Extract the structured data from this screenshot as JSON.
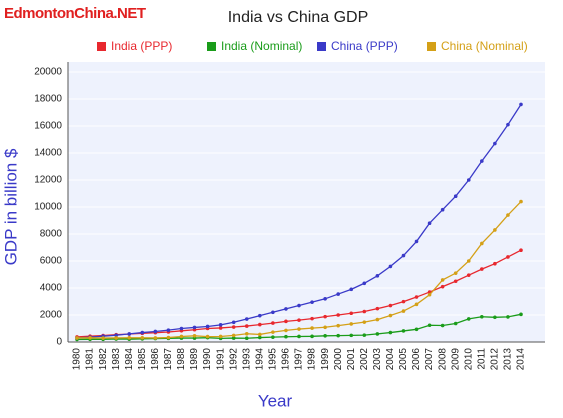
{
  "watermark": "EdmontonChina.NET",
  "chart_data": {
    "type": "line",
    "title": "India vs China GDP",
    "x_label": "Year",
    "y_label": "GDP in billion $",
    "categories": [
      "1980",
      "1981",
      "1982",
      "1983",
      "1984",
      "1985",
      "1986",
      "1987",
      "1988",
      "1989",
      "1990",
      "1991",
      "1992",
      "1993",
      "1994",
      "1995",
      "1996",
      "1997",
      "1998",
      "1999",
      "2000",
      "2001",
      "2002",
      "2003",
      "2004",
      "2005",
      "2006",
      "2007",
      "2008",
      "2009",
      "2010",
      "2011",
      "2012",
      "2013",
      "2014"
    ],
    "series": [
      {
        "name": "India (PPP)",
        "color": "#e8282e",
        "values": [
          380,
          430,
          480,
          540,
          590,
          640,
          690,
          740,
          830,
          910,
          1000,
          1040,
          1110,
          1180,
          1290,
          1400,
          1530,
          1620,
          1730,
          1880,
          2000,
          2130,
          2260,
          2470,
          2700,
          2990,
          3330,
          3700,
          4100,
          4500,
          4950,
          5400,
          5800,
          6300,
          6800
        ]
      },
      {
        "name": "India (Nominal)",
        "color": "#1a9c1a",
        "values": [
          190,
          200,
          200,
          220,
          210,
          230,
          250,
          270,
          290,
          290,
          320,
          270,
          290,
          280,
          330,
          360,
          390,
          410,
          420,
          460,
          470,
          490,
          510,
          600,
          700,
          820,
          940,
          1240,
          1220,
          1370,
          1710,
          1870,
          1830,
          1860,
          2050
        ]
      },
      {
        "name": "China (PPP)",
        "color": "#3a3ac8",
        "values": [
          300,
          360,
          430,
          500,
          600,
          700,
          780,
          880,
          1000,
          1080,
          1150,
          1270,
          1460,
          1700,
          1950,
          2200,
          2450,
          2700,
          2950,
          3200,
          3550,
          3900,
          4350,
          4900,
          5600,
          6400,
          7450,
          8800,
          9800,
          10800,
          12000,
          13400,
          14700,
          16100,
          17600
        ]
      },
      {
        "name": "China (Nominal)",
        "color": "#d4a017",
        "values": [
          300,
          310,
          290,
          300,
          310,
          310,
          300,
          330,
          410,
          460,
          400,
          410,
          490,
          610,
          560,
          730,
          860,
          960,
          1030,
          1090,
          1210,
          1340,
          1470,
          1660,
          1960,
          2290,
          2790,
          3500,
          4600,
          5100,
          6000,
          7300,
          8300,
          9400,
          10400
        ]
      }
    ],
    "ylim": [
      0,
      20000
    ],
    "yticks": [
      0,
      2000,
      4000,
      6000,
      8000,
      10000,
      12000,
      14000,
      16000,
      18000,
      20000
    ],
    "grid": true
  }
}
